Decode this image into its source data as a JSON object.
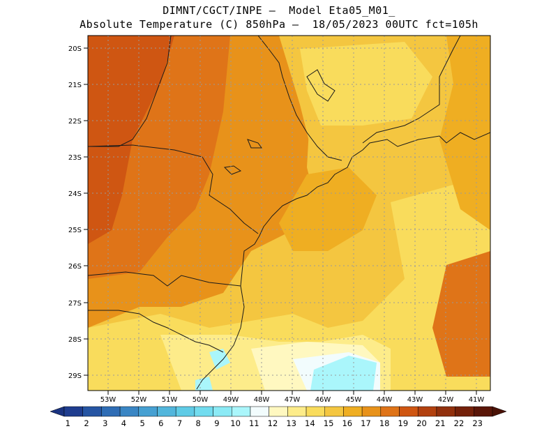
{
  "header": {
    "line1": "DIMNT/CGCT/INPE –  Model Eta05_M01_",
    "line2": "Absolute Temperature (C) 850hPa –  18/05/2023 00UTC fct=105h"
  },
  "axes": {
    "lat_labels": [
      "20S",
      "21S",
      "22S",
      "23S",
      "24S",
      "25S",
      "26S",
      "27S",
      "28S",
      "29S"
    ],
    "lon_labels": [
      "53W",
      "52W",
      "51W",
      "50W",
      "49W",
      "48W",
      "47W",
      "46W",
      "45W",
      "44W",
      "43W",
      "42W",
      "41W"
    ]
  },
  "colorbar": {
    "labels": [
      "1",
      "2",
      "3",
      "4",
      "5",
      "6",
      "7",
      "8",
      "9",
      "10",
      "11",
      "12",
      "13",
      "14",
      "15",
      "16",
      "17",
      "18",
      "19",
      "20",
      "21",
      "22",
      "23"
    ],
    "colors": [
      "#1f3d8f",
      "#2655a3",
      "#2f6db5",
      "#3a86c4",
      "#46a0d2",
      "#52b6dc",
      "#5fcbe6",
      "#72dcef",
      "#8beaf5",
      "#aaf6fb",
      "#f2fcfd",
      "#fff8c0",
      "#fdec8a",
      "#f9dc5c",
      "#f4c640",
      "#efae22",
      "#e8921a",
      "#df7418",
      "#cf5612",
      "#b2410f",
      "#91300d",
      "#74210a",
      "#5a1608"
    ],
    "left_arrow_color": "#1a3380",
    "right_arrow_color": "#4a1206"
  },
  "palette": {
    "land_outline": "#1a1a1a",
    "grid": "#9a9a9a"
  }
}
